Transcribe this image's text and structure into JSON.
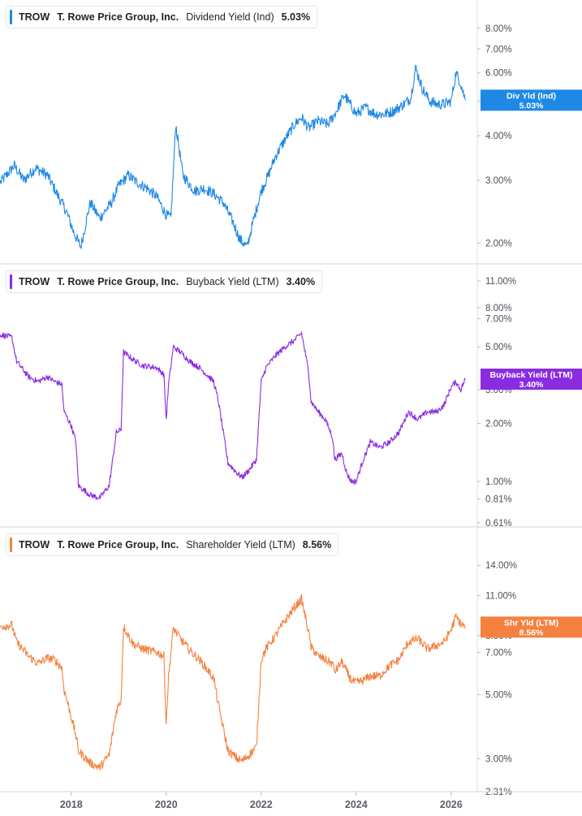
{
  "chart_data": {
    "type": "line",
    "x_axis": {
      "ticks": [
        "2018",
        "2020",
        "2022",
        "2024",
        "2026"
      ],
      "tick_years": [
        2018,
        2020,
        2022,
        2024,
        2026
      ],
      "range": [
        "2016-07",
        "2026-06"
      ]
    },
    "panels": [
      {
        "ticker": "TROW",
        "company": "T. Rowe Price Group, Inc.",
        "metric": "Dividend Yield (Ind)",
        "current_value": "5.03%",
        "tag_label": "Div Yld (Ind)",
        "color": "#1e88e5",
        "scale": "log",
        "y_range": [
          1.75,
          9.6
        ],
        "y_ticks": [
          "2.00%",
          "3.00%",
          "4.00%",
          "5.00%",
          "6.00%",
          "7.00%",
          "8.00%"
        ],
        "y_tick_values": [
          2,
          3,
          4,
          5,
          6,
          7,
          8
        ],
        "x": [
          2016.5,
          2016.8,
          2017.0,
          2017.25,
          2017.5,
          2017.7,
          2017.9,
          2018.05,
          2018.2,
          2018.4,
          2018.6,
          2018.85,
          2019.0,
          2019.2,
          2019.4,
          2019.6,
          2019.8,
          2020.0,
          2020.1,
          2020.2,
          2020.35,
          2020.6,
          2020.8,
          2021.0,
          2021.2,
          2021.4,
          2021.55,
          2021.7,
          2021.85,
          2022.0,
          2022.15,
          2022.3,
          2022.5,
          2022.7,
          2022.85,
          2023.0,
          2023.2,
          2023.4,
          2023.55,
          2023.75,
          2024.0,
          2024.2,
          2024.4,
          2024.6,
          2024.8,
          2025.0,
          2025.15,
          2025.25,
          2025.4,
          2025.55,
          2025.7,
          2025.85,
          2026.0,
          2026.1,
          2026.2,
          2026.3
        ],
        "values": [
          2.95,
          3.3,
          3.0,
          3.25,
          3.1,
          2.75,
          2.45,
          2.15,
          1.95,
          2.6,
          2.35,
          2.6,
          2.9,
          3.1,
          2.95,
          2.85,
          2.7,
          2.4,
          2.35,
          4.3,
          3.1,
          2.8,
          2.85,
          2.75,
          2.6,
          2.3,
          2.05,
          1.95,
          2.35,
          2.8,
          3.1,
          3.5,
          3.9,
          4.3,
          4.5,
          4.2,
          4.4,
          4.3,
          4.6,
          5.2,
          4.6,
          4.8,
          4.6,
          4.6,
          4.7,
          4.9,
          5.1,
          6.2,
          5.4,
          5.0,
          4.9,
          4.9,
          5.0,
          6.0,
          5.6,
          5.03
        ]
      },
      {
        "ticker": "TROW",
        "company": "T. Rowe Price Group, Inc.",
        "metric": "Buyback Yield (LTM)",
        "current_value": "3.40%",
        "tag_label": "Buyback Yield (LTM)",
        "color": "#8a2be2",
        "scale": "log",
        "y_range": [
          0.58,
          13.5
        ],
        "y_ticks": [
          "0.61%",
          "0.81%",
          "1.00%",
          "2.00%",
          "3.00%",
          "5.00%",
          "7.00%",
          "8.00%",
          "11.00%"
        ],
        "y_tick_values": [
          0.61,
          0.81,
          1,
          2,
          3,
          5,
          7,
          8,
          11
        ],
        "x": [
          2016.5,
          2016.75,
          2016.85,
          2017.1,
          2017.3,
          2017.5,
          2017.65,
          2017.8,
          2017.85,
          2018.0,
          2018.1,
          2018.15,
          2018.4,
          2018.6,
          2018.8,
          2018.95,
          2019.05,
          2019.1,
          2019.3,
          2019.5,
          2019.8,
          2019.95,
          2020.0,
          2020.05,
          2020.15,
          2020.3,
          2020.5,
          2020.7,
          2020.9,
          2021.0,
          2021.1,
          2021.3,
          2021.5,
          2021.6,
          2021.75,
          2021.9,
          2022.0,
          2022.1,
          2022.3,
          2022.5,
          2022.7,
          2022.85,
          2023.0,
          2023.05,
          2023.2,
          2023.35,
          2023.5,
          2023.55,
          2023.7,
          2023.8,
          2023.9,
          2024.0,
          2024.15,
          2024.3,
          2024.5,
          2024.7,
          2024.9,
          2025.1,
          2025.3,
          2025.5,
          2025.7,
          2025.85,
          2026.0,
          2026.1,
          2026.2,
          2026.3
        ],
        "values": [
          5.8,
          5.6,
          4.2,
          3.5,
          3.3,
          3.5,
          3.3,
          3.2,
          2.3,
          1.95,
          1.6,
          0.95,
          0.85,
          0.82,
          0.95,
          1.8,
          1.85,
          4.7,
          4.3,
          4.0,
          3.9,
          3.6,
          2.1,
          3.2,
          5.0,
          4.7,
          4.2,
          3.9,
          3.5,
          3.3,
          2.6,
          1.25,
          1.1,
          1.05,
          1.15,
          1.3,
          3.3,
          3.9,
          4.5,
          5.0,
          5.4,
          5.9,
          3.7,
          2.6,
          2.3,
          2.1,
          1.7,
          1.3,
          1.4,
          1.1,
          1.0,
          1.0,
          1.3,
          1.6,
          1.5,
          1.6,
          1.8,
          2.3,
          2.1,
          2.3,
          2.3,
          2.5,
          3.1,
          3.3,
          3.0,
          3.4
        ]
      },
      {
        "ticker": "TROW",
        "company": "T. Rowe Price Group, Inc.",
        "metric": "Shareholder Yield (LTM)",
        "current_value": "8.56%",
        "tag_label": "Shr Yld (LTM)",
        "color": "#f4813f",
        "scale": "log",
        "y_range": [
          2.31,
          19.0
        ],
        "y_ticks": [
          "2.31%",
          "3.00%",
          "5.00%",
          "7.00%",
          "8.00%",
          "11.00%",
          "14.00%"
        ],
        "y_tick_values": [
          2.31,
          3,
          5,
          7,
          8,
          11,
          14
        ],
        "x": [
          2016.5,
          2016.75,
          2016.85,
          2017.1,
          2017.3,
          2017.5,
          2017.65,
          2017.8,
          2017.85,
          2018.0,
          2018.1,
          2018.15,
          2018.4,
          2018.6,
          2018.8,
          2018.95,
          2019.05,
          2019.1,
          2019.3,
          2019.5,
          2019.8,
          2019.95,
          2020.0,
          2020.05,
          2020.15,
          2020.3,
          2020.5,
          2020.7,
          2020.9,
          2021.0,
          2021.1,
          2021.3,
          2021.5,
          2021.6,
          2021.75,
          2021.9,
          2022.0,
          2022.1,
          2022.3,
          2022.5,
          2022.7,
          2022.85,
          2023.0,
          2023.05,
          2023.2,
          2023.35,
          2023.5,
          2023.55,
          2023.7,
          2023.8,
          2023.9,
          2024.0,
          2024.15,
          2024.3,
          2024.5,
          2024.7,
          2024.9,
          2025.1,
          2025.3,
          2025.5,
          2025.7,
          2025.85,
          2026.0,
          2026.1,
          2026.2,
          2026.3
        ],
        "values": [
          8.6,
          8.7,
          7.6,
          6.8,
          6.4,
          6.7,
          6.6,
          6.2,
          5.2,
          4.2,
          3.6,
          3.2,
          2.9,
          2.8,
          3.1,
          4.4,
          4.8,
          8.6,
          7.5,
          7.2,
          7.0,
          6.8,
          4.0,
          5.8,
          8.5,
          7.8,
          7.1,
          6.6,
          6.0,
          5.7,
          4.6,
          3.2,
          3.0,
          2.95,
          3.1,
          3.3,
          6.6,
          7.2,
          8.0,
          9.0,
          10.0,
          10.7,
          8.2,
          7.3,
          6.8,
          6.6,
          6.4,
          6.0,
          6.5,
          6.0,
          5.6,
          5.5,
          5.6,
          5.8,
          5.8,
          6.3,
          6.6,
          7.6,
          7.8,
          7.2,
          7.4,
          7.6,
          8.4,
          9.3,
          8.8,
          8.56
        ]
      }
    ]
  }
}
